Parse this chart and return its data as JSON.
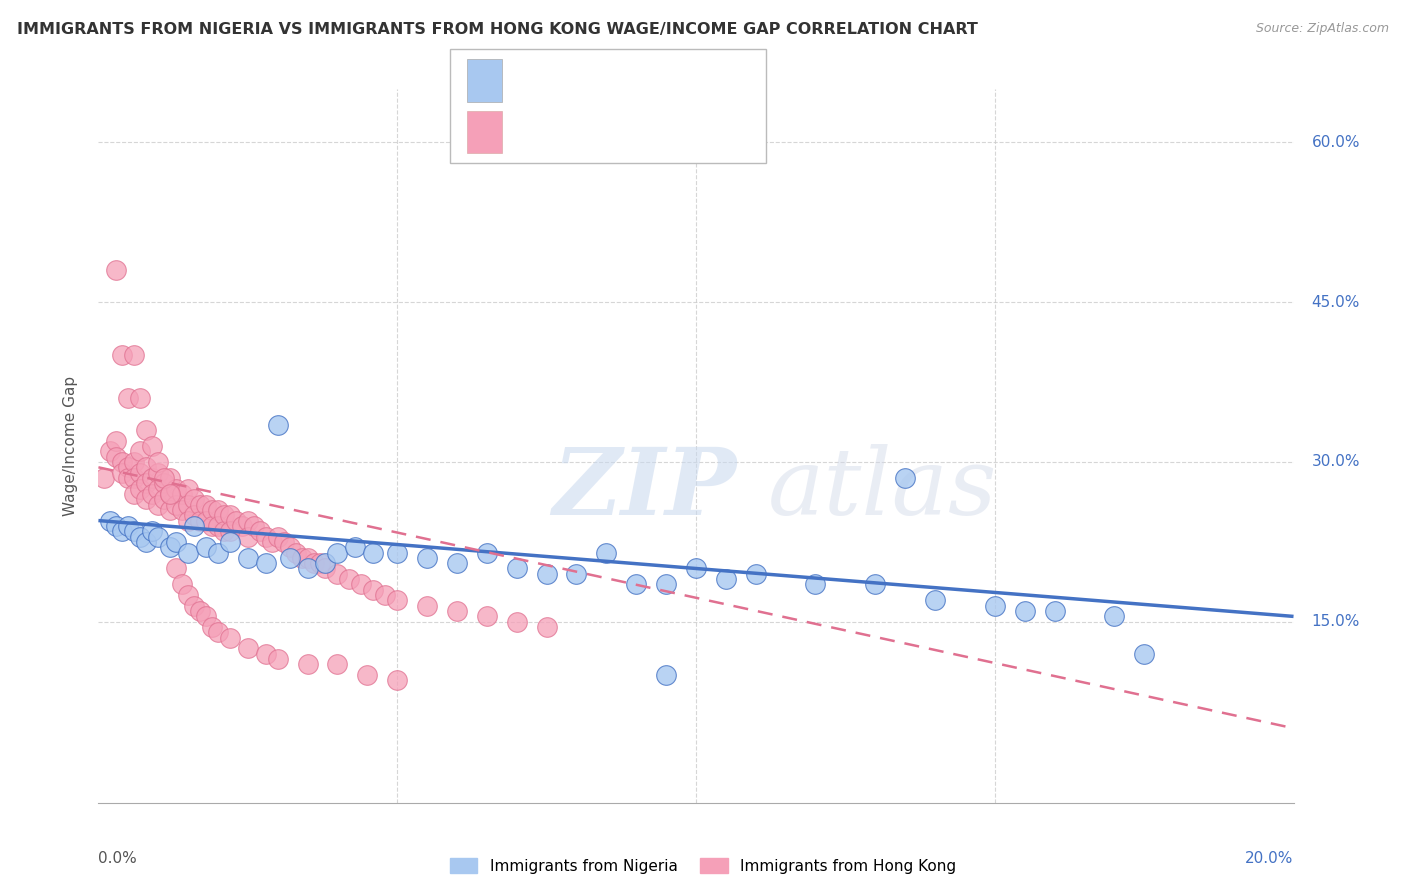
{
  "title": "IMMIGRANTS FROM NIGERIA VS IMMIGRANTS FROM HONG KONG WAGE/INCOME GAP CORRELATION CHART",
  "source": "Source: ZipAtlas.com",
  "ylabel": "Wage/Income Gap",
  "legend_label_blue": "Immigrants from Nigeria",
  "legend_label_pink": "Immigrants from Hong Kong",
  "xlim": [
    0.0,
    0.2
  ],
  "ylim": [
    -0.02,
    0.65
  ],
  "yticks": [
    0.15,
    0.3,
    0.45,
    0.6
  ],
  "ytick_labels": [
    "15.0%",
    "30.0%",
    "45.0%",
    "60.0%"
  ],
  "color_blue": "#A8C8F0",
  "color_pink": "#F5A0B8",
  "trend_blue_color": "#4472C4",
  "trend_pink_color": "#E07090",
  "watermark_zip": "ZIP",
  "watermark_atlas": "atlas",
  "nigeria_x": [
    0.002,
    0.003,
    0.004,
    0.005,
    0.006,
    0.007,
    0.008,
    0.009,
    0.01,
    0.012,
    0.013,
    0.015,
    0.016,
    0.018,
    0.02,
    0.022,
    0.025,
    0.028,
    0.03,
    0.032,
    0.035,
    0.038,
    0.04,
    0.043,
    0.046,
    0.05,
    0.055,
    0.06,
    0.065,
    0.07,
    0.075,
    0.08,
    0.085,
    0.09,
    0.095,
    0.1,
    0.105,
    0.11,
    0.12,
    0.13,
    0.14,
    0.15,
    0.16,
    0.17,
    0.135,
    0.155,
    0.175,
    0.095
  ],
  "nigeria_y": [
    0.245,
    0.24,
    0.235,
    0.24,
    0.235,
    0.23,
    0.225,
    0.235,
    0.23,
    0.22,
    0.225,
    0.215,
    0.24,
    0.22,
    0.215,
    0.225,
    0.21,
    0.205,
    0.335,
    0.21,
    0.2,
    0.205,
    0.215,
    0.22,
    0.215,
    0.215,
    0.21,
    0.205,
    0.215,
    0.2,
    0.195,
    0.195,
    0.215,
    0.185,
    0.185,
    0.2,
    0.19,
    0.195,
    0.185,
    0.185,
    0.17,
    0.165,
    0.16,
    0.155,
    0.285,
    0.16,
    0.12,
    0.1
  ],
  "hongkong_x": [
    0.001,
    0.002,
    0.003,
    0.003,
    0.004,
    0.004,
    0.005,
    0.005,
    0.006,
    0.006,
    0.006,
    0.007,
    0.007,
    0.007,
    0.008,
    0.008,
    0.008,
    0.009,
    0.009,
    0.01,
    0.01,
    0.01,
    0.011,
    0.011,
    0.012,
    0.012,
    0.012,
    0.013,
    0.013,
    0.014,
    0.014,
    0.015,
    0.015,
    0.015,
    0.016,
    0.016,
    0.017,
    0.017,
    0.018,
    0.018,
    0.019,
    0.019,
    0.02,
    0.02,
    0.021,
    0.021,
    0.022,
    0.022,
    0.023,
    0.024,
    0.025,
    0.025,
    0.026,
    0.027,
    0.028,
    0.029,
    0.03,
    0.031,
    0.032,
    0.033,
    0.034,
    0.035,
    0.036,
    0.037,
    0.038,
    0.04,
    0.042,
    0.044,
    0.046,
    0.048,
    0.05,
    0.055,
    0.06,
    0.065,
    0.07,
    0.075,
    0.003,
    0.004,
    0.005,
    0.006,
    0.007,
    0.008,
    0.009,
    0.01,
    0.011,
    0.012,
    0.013,
    0.014,
    0.015,
    0.016,
    0.017,
    0.018,
    0.019,
    0.02,
    0.022,
    0.025,
    0.028,
    0.03,
    0.035,
    0.04,
    0.045,
    0.05
  ],
  "hongkong_y": [
    0.285,
    0.31,
    0.32,
    0.305,
    0.3,
    0.29,
    0.295,
    0.285,
    0.3,
    0.285,
    0.27,
    0.31,
    0.29,
    0.275,
    0.295,
    0.28,
    0.265,
    0.285,
    0.27,
    0.29,
    0.275,
    0.26,
    0.28,
    0.265,
    0.285,
    0.27,
    0.255,
    0.275,
    0.26,
    0.27,
    0.255,
    0.275,
    0.26,
    0.245,
    0.265,
    0.25,
    0.26,
    0.245,
    0.26,
    0.245,
    0.255,
    0.24,
    0.255,
    0.24,
    0.25,
    0.235,
    0.25,
    0.235,
    0.245,
    0.24,
    0.245,
    0.23,
    0.24,
    0.235,
    0.23,
    0.225,
    0.23,
    0.225,
    0.22,
    0.215,
    0.21,
    0.21,
    0.205,
    0.205,
    0.2,
    0.195,
    0.19,
    0.185,
    0.18,
    0.175,
    0.17,
    0.165,
    0.16,
    0.155,
    0.15,
    0.145,
    0.48,
    0.4,
    0.36,
    0.4,
    0.36,
    0.33,
    0.315,
    0.3,
    0.285,
    0.27,
    0.2,
    0.185,
    0.175,
    0.165,
    0.16,
    0.155,
    0.145,
    0.14,
    0.135,
    0.125,
    0.12,
    0.115,
    0.11,
    0.11,
    0.1,
    0.095
  ],
  "trend_blue_y0": 0.245,
  "trend_blue_y1": 0.155,
  "trend_pink_y0": 0.295,
  "trend_pink_y1": 0.05
}
